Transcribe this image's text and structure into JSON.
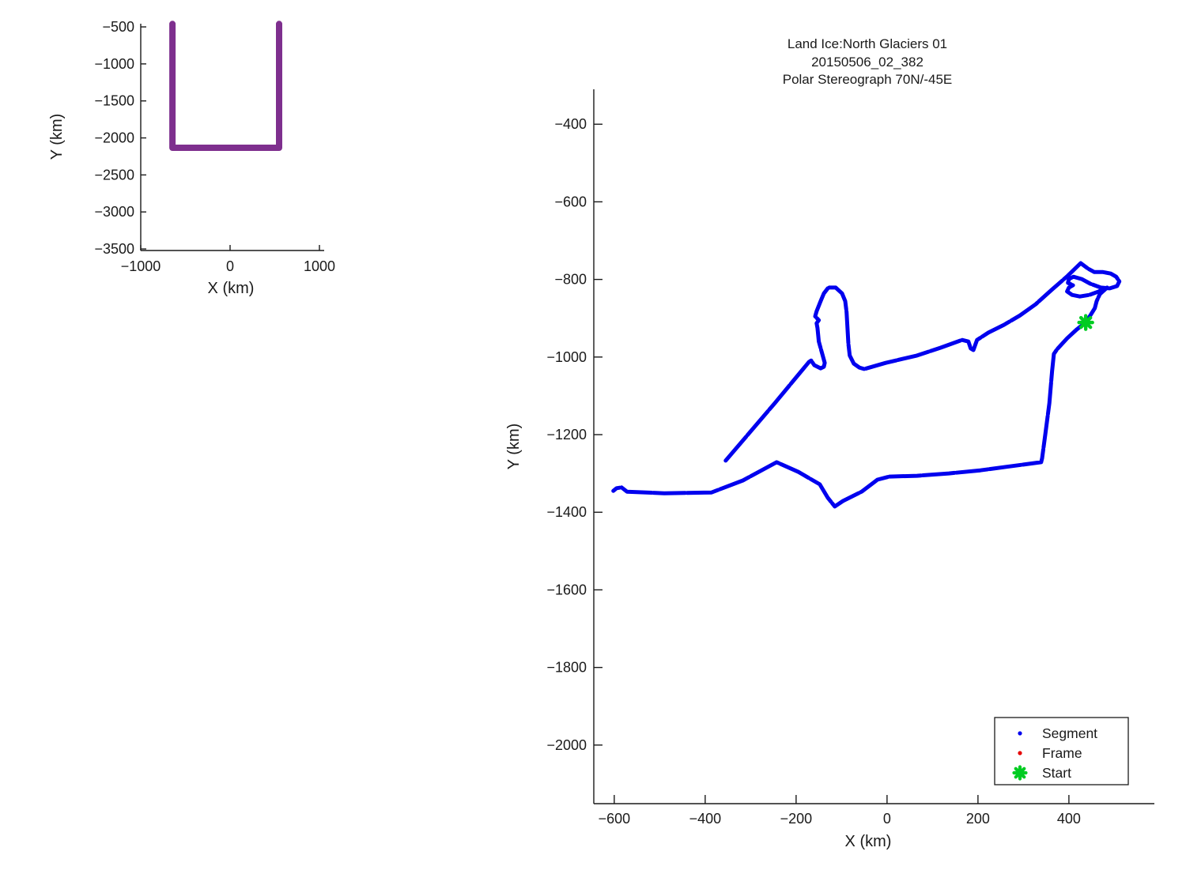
{
  "figure": {
    "background": "#ffffff"
  },
  "colors": {
    "axis": "#1a1a1a",
    "segment_blue": "#0000ee",
    "frame_red": "#e60000",
    "start_green": "#00cc22",
    "overview_purple": "#7e2f8e"
  },
  "chart_data": [
    {
      "id": "overview",
      "type": "line",
      "xlabel": "X (km)",
      "ylabel": "Y (km)",
      "xlim": [
        -1000,
        1053
      ],
      "ylim": [
        -3521,
        -457
      ],
      "grid": false,
      "xticks": [
        {
          "v": -1000,
          "label": "−1000"
        },
        {
          "v": 0,
          "label": "0"
        },
        {
          "v": 1000,
          "label": "1000"
        }
      ],
      "yticks": [
        {
          "v": -500,
          "label": "−500"
        },
        {
          "v": -1000,
          "label": "−1000"
        },
        {
          "v": -1500,
          "label": "−1500"
        },
        {
          "v": -2000,
          "label": "−2000"
        },
        {
          "v": -2500,
          "label": "−2500"
        },
        {
          "v": -3000,
          "label": "−3000"
        },
        {
          "v": -3500,
          "label": "−3500"
        }
      ],
      "series": [
        {
          "name": "mission-track-overview",
          "color": "#7e2f8e",
          "width": 8,
          "points": [
            [
              -645,
              -460
            ],
            [
              -645,
              -2133
            ],
            [
              549,
              -2133
            ],
            [
              549,
              -460
            ]
          ]
        }
      ]
    },
    {
      "id": "main",
      "type": "line",
      "title_lines": [
        "Land Ice:North Glaciers 01",
        "20150506_02_382",
        "Polar Stereograph 70N/-45E"
      ],
      "xlabel": "X (km)",
      "ylabel": "Y (km)",
      "xlim": [
        -645,
        588
      ],
      "ylim": [
        -2151,
        -310
      ],
      "grid": false,
      "xticks": [
        {
          "v": -600,
          "label": "−600"
        },
        {
          "v": -400,
          "label": "−400"
        },
        {
          "v": -200,
          "label": "−200"
        },
        {
          "v": 0,
          "label": "0"
        },
        {
          "v": 200,
          "label": "200"
        },
        {
          "v": 400,
          "label": "400"
        }
      ],
      "yticks": [
        {
          "v": -400,
          "label": "−400"
        },
        {
          "v": -600,
          "label": "−600"
        },
        {
          "v": -800,
          "label": "−800"
        },
        {
          "v": -1000,
          "label": "−1000"
        },
        {
          "v": -1200,
          "label": "−1200"
        },
        {
          "v": -1400,
          "label": "−1400"
        },
        {
          "v": -1600,
          "label": "−1600"
        },
        {
          "v": -1800,
          "label": "−1800"
        },
        {
          "v": -2000,
          "label": "−2000"
        }
      ],
      "legend": {
        "position": "southeast",
        "items": [
          {
            "label": "Segment",
            "marker": "dot",
            "color": "#0000ee"
          },
          {
            "label": "Frame",
            "marker": "dot",
            "color": "#e60000"
          },
          {
            "label": "Start",
            "marker": "asterisk",
            "color": "#00cc22"
          }
        ]
      },
      "start": {
        "x": 437,
        "y": -911,
        "color": "#00cc22"
      },
      "series": [
        {
          "name": "Segment",
          "color": "#0000ee",
          "width": 5,
          "points": [
            [
              -355,
              -1267
            ],
            [
              -247,
              -1119
            ],
            [
              -172,
              -1013
            ],
            [
              -167,
              -1009
            ],
            [
              -160,
              -1021
            ],
            [
              -146,
              -1029
            ],
            [
              -139,
              -1025
            ],
            [
              -137,
              -1015
            ],
            [
              -150,
              -960
            ],
            [
              -153,
              -925
            ],
            [
              -155,
              -913
            ],
            [
              -150,
              -905
            ],
            [
              -158,
              -895
            ],
            [
              -155,
              -882
            ],
            [
              -146,
              -856
            ],
            [
              -139,
              -836
            ],
            [
              -129,
              -821
            ],
            [
              -113,
              -821
            ],
            [
              -99,
              -836
            ],
            [
              -92,
              -856
            ],
            [
              -89,
              -884
            ],
            [
              -85,
              -966
            ],
            [
              -82,
              -996
            ],
            [
              -73,
              -1017
            ],
            [
              -61,
              -1027
            ],
            [
              -50,
              -1031
            ],
            [
              -3,
              -1015
            ],
            [
              66,
              -996
            ],
            [
              118,
              -976
            ],
            [
              165,
              -956
            ],
            [
              179,
              -960
            ],
            [
              184,
              -978
            ],
            [
              190,
              -982
            ],
            [
              198,
              -956
            ],
            [
              223,
              -937
            ],
            [
              257,
              -917
            ],
            [
              292,
              -893
            ],
            [
              327,
              -864
            ],
            [
              362,
              -827
            ],
            [
              397,
              -791
            ],
            [
              426,
              -758
            ],
            [
              442,
              -772
            ],
            [
              456,
              -781
            ],
            [
              475,
              -781
            ],
            [
              492,
              -785
            ],
            [
              504,
              -793
            ],
            [
              511,
              -805
            ],
            [
              506,
              -817
            ],
            [
              490,
              -823
            ],
            [
              470,
              -821
            ],
            [
              447,
              -811
            ],
            [
              428,
              -799
            ],
            [
              410,
              -793
            ],
            [
              400,
              -799
            ],
            [
              398,
              -809
            ],
            [
              409,
              -815
            ],
            [
              400,
              -821
            ],
            [
              396,
              -831
            ],
            [
              407,
              -840
            ],
            [
              424,
              -844
            ],
            [
              445,
              -840
            ],
            [
              466,
              -831
            ],
            [
              484,
              -821
            ],
            [
              468,
              -838
            ],
            [
              461,
              -856
            ],
            [
              457,
              -874
            ],
            [
              447,
              -893
            ],
            [
              437,
              -911
            ],
            [
              417,
              -929
            ],
            [
              396,
              -952
            ],
            [
              374,
              -980
            ],
            [
              367,
              -992
            ],
            [
              363,
              -1037
            ],
            [
              357,
              -1119
            ],
            [
              348,
              -1200
            ],
            [
              341,
              -1261
            ],
            [
              339,
              -1271
            ],
            [
              275,
              -1281
            ],
            [
              205,
              -1292
            ],
            [
              136,
              -1300
            ],
            [
              66,
              -1306
            ],
            [
              5,
              -1308
            ],
            [
              -21,
              -1316
            ],
            [
              -56,
              -1347
            ],
            [
              -97,
              -1371
            ],
            [
              -115,
              -1385
            ],
            [
              -130,
              -1363
            ],
            [
              -148,
              -1328
            ],
            [
              -195,
              -1296
            ],
            [
              -243,
              -1271
            ],
            [
              -317,
              -1318
            ],
            [
              -386,
              -1349
            ],
            [
              -490,
              -1351
            ],
            [
              -572,
              -1347
            ],
            [
              -584,
              -1336
            ],
            [
              -595,
              -1338
            ],
            [
              -602,
              -1345
            ]
          ]
        }
      ]
    }
  ]
}
